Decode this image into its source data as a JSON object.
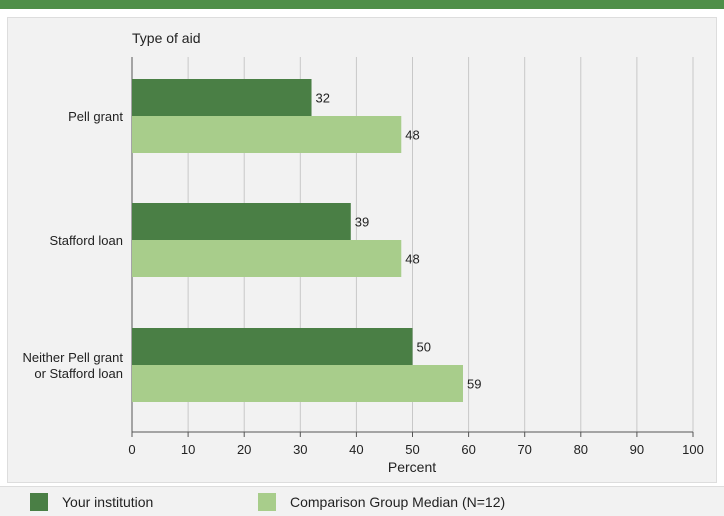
{
  "chart_data": {
    "type": "bar",
    "orientation": "horizontal",
    "title": "Type of aid",
    "xlabel": "Percent",
    "xlim": [
      0,
      100
    ],
    "xticks": [
      0,
      10,
      20,
      30,
      40,
      50,
      60,
      70,
      80,
      90,
      100
    ],
    "grid": true,
    "legend_placement": "bottom",
    "categories": [
      [
        "Pell grant"
      ],
      [
        "Stafford loan"
      ],
      [
        "Neither Pell grant",
        "or Stafford loan"
      ]
    ],
    "series": [
      {
        "name": "Your institution",
        "color": "#4a7f45",
        "values": [
          32,
          39,
          50
        ]
      },
      {
        "name": "Comparison Group Median (N=12)",
        "color": "#a8cd8b",
        "values": [
          48,
          48,
          59
        ]
      }
    ]
  }
}
